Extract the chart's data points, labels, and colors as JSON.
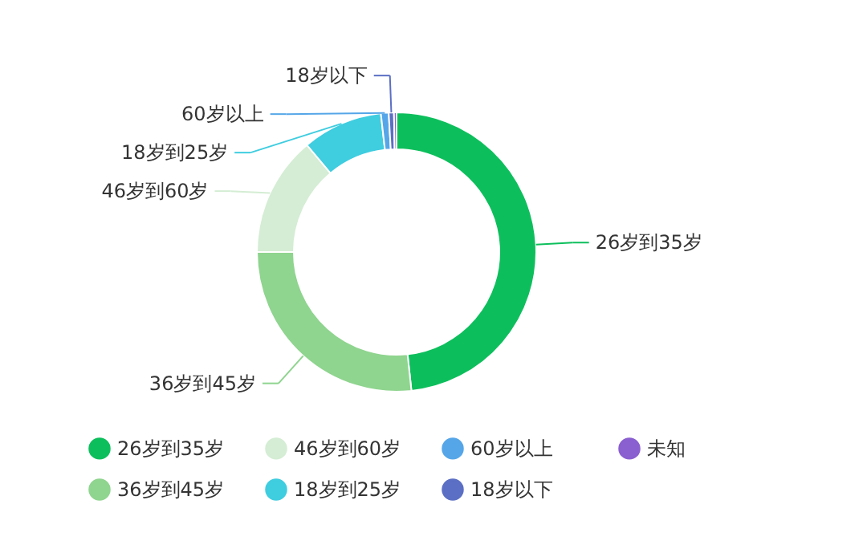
{
  "chart_data": {
    "type": "donut",
    "categories": [
      "26岁到35岁",
      "36岁到45岁",
      "46岁到60岁",
      "18岁到25岁",
      "60岁以上",
      "18岁以下",
      "未知"
    ],
    "values": [
      48.3,
      26.7,
      13.9,
      9.3,
      0.9,
      0.6,
      0.3
    ],
    "colors": [
      "#0dbf5c",
      "#8fd48f",
      "#d4edd4",
      "#3fcde0",
      "#55a6e8",
      "#5b6fc4",
      "#8a5fd0"
    ],
    "legend": "bottom"
  }
}
